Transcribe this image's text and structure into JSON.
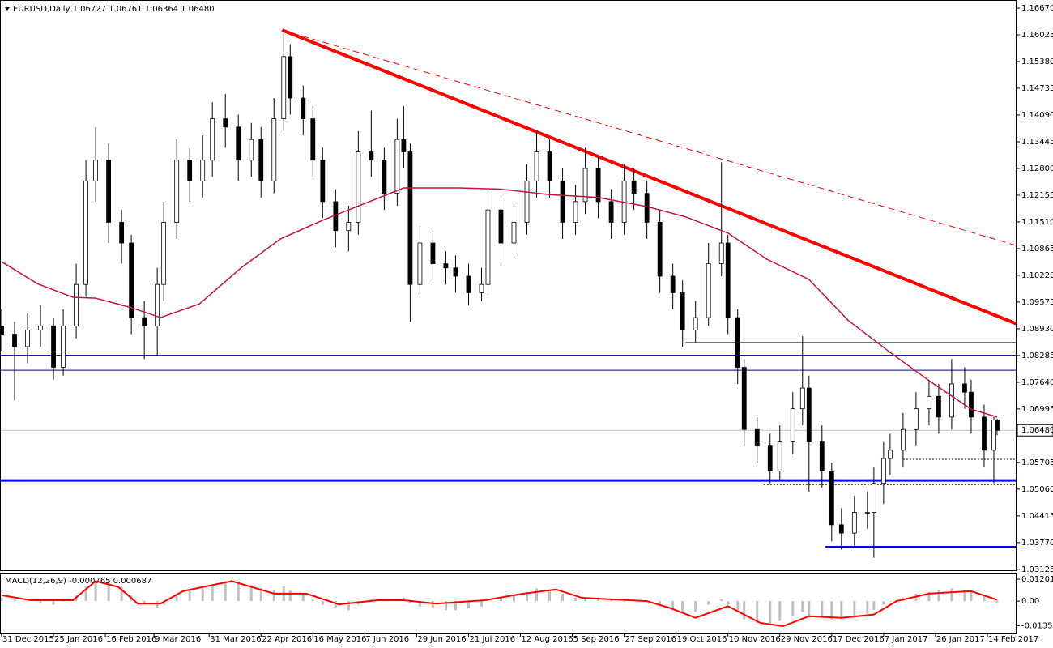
{
  "chart_data": {
    "type": "candlestick",
    "title": "EURUSD,Daily",
    "last_close_label": "1.06480",
    "xlim": [
      -0.5,
      313
    ],
    "ylim": [
      1.03083,
      1.16866
    ],
    "xticks": [
      {
        "value": 0,
        "label": "31 Dec 2015"
      },
      {
        "value": 16,
        "label": "25 Jan 2016"
      },
      {
        "value": 32,
        "label": "16 Feb 2016"
      },
      {
        "value": 47,
        "label": "9 Mar 2016"
      },
      {
        "value": 64,
        "label": "31 Mar 2016"
      },
      {
        "value": 80,
        "label": "22 Apr 2016"
      },
      {
        "value": 96,
        "label": "16 May 2016"
      },
      {
        "value": 112,
        "label": "7 Jun 2016"
      },
      {
        "value": 128,
        "label": "29 Jun 2016"
      },
      {
        "value": 144,
        "label": "21 Jul 2016"
      },
      {
        "value": 160,
        "label": "12 Aug 2016"
      },
      {
        "value": 176,
        "label": "5 Sep 2016"
      },
      {
        "value": 192,
        "label": "27 Sep 2016"
      },
      {
        "value": 208,
        "label": "19 Oct 2016"
      },
      {
        "value": 224,
        "label": "10 Nov 2016"
      },
      {
        "value": 240,
        "label": "29 Nov 2016"
      },
      {
        "value": 256,
        "label": "17 Dec 2016"
      },
      {
        "value": 272,
        "label": "7 Jan 2017"
      },
      {
        "value": 288,
        "label": "26 Jan 2017"
      },
      {
        "value": 304,
        "label": "14 Feb 2017"
      }
    ],
    "yticks": [
      {
        "value": 1.1667,
        "label": "1.16670"
      },
      1.16025,
      {
        "value": 1.1538,
        "label": "1.15380"
      },
      1.14735,
      {
        "value": 1.1409,
        "label": "1.14090"
      },
      1.13445,
      {
        "value": 1.128,
        "label": "1.12800"
      },
      1.12155,
      {
        "value": 1.1151,
        "label": "1.11510"
      },
      1.10865,
      {
        "value": 1.1022,
        "label": "1.10220"
      },
      1.09575,
      {
        "value": 1.0893,
        "label": "1.08930"
      },
      1.08285,
      {
        "value": 1.0764,
        "label": "1.07640"
      },
      1.06995,
      1.05705,
      {
        "value": 1.0506,
        "label": "1.05060"
      },
      1.04415,
      {
        "value": 1.0377,
        "label": "1.03770"
      },
      1.03125
    ],
    "candles": {
      "x": [
        0,
        4,
        8,
        12,
        16,
        19,
        23,
        26,
        29,
        33,
        37,
        40,
        44,
        48,
        50,
        54,
        58,
        62,
        65,
        69,
        73,
        77,
        80,
        84,
        87,
        89,
        93,
        96,
        99,
        103,
        107,
        110,
        114,
        118,
        122,
        124,
        126,
        129,
        133,
        137,
        140,
        144,
        148,
        150,
        154,
        158,
        162,
        165,
        169,
        173,
        177,
        180,
        184,
        188,
        192,
        195,
        199,
        203,
        207,
        210,
        214,
        218,
        222,
        224,
        227,
        229,
        233,
        237,
        240,
        244,
        247,
        249,
        253,
        256,
        259,
        263,
        267,
        269,
        272,
        274,
        278,
        282,
        286,
        289,
        293,
        297,
        299,
        303,
        306,
        307
      ],
      "open": [
        1.09,
        1.088,
        1.085,
        1.089,
        1.09,
        1.08,
        1.09,
        1.1,
        1.125,
        1.13,
        1.115,
        1.11,
        1.092,
        1.09,
        1.1,
        1.115,
        1.13,
        1.125,
        1.13,
        1.14,
        1.138,
        1.13,
        1.135,
        1.125,
        1.14,
        1.155,
        1.145,
        1.14,
        1.13,
        1.12,
        1.113,
        1.115,
        1.132,
        1.13,
        1.122,
        1.135,
        1.132,
        1.1,
        1.11,
        1.105,
        1.104,
        1.102,
        1.098,
        1.1,
        1.118,
        1.11,
        1.115,
        1.125,
        1.132,
        1.125,
        1.115,
        1.12,
        1.128,
        1.12,
        1.115,
        1.125,
        1.122,
        1.115,
        1.102,
        1.098,
        1.089,
        1.092,
        1.105,
        1.11,
        1.092,
        1.08,
        1.065,
        1.061,
        1.055,
        1.062,
        1.07,
        1.075,
        1.062,
        1.055,
        1.042,
        1.04,
        1.045,
        1.045,
        1.052,
        1.058,
        1.06,
        1.065,
        1.07,
        1.073,
        1.068,
        1.076,
        1.074,
        1.068,
        1.06,
        1.06727
      ],
      "high": [
        1.094,
        1.091,
        1.093,
        1.095,
        1.092,
        1.094,
        1.105,
        1.13,
        1.138,
        1.134,
        1.118,
        1.112,
        1.096,
        1.104,
        1.12,
        1.135,
        1.133,
        1.136,
        1.144,
        1.146,
        1.141,
        1.139,
        1.138,
        1.145,
        1.1614,
        1.158,
        1.148,
        1.143,
        1.133,
        1.123,
        1.119,
        1.137,
        1.142,
        1.133,
        1.14,
        1.143,
        1.134,
        1.114,
        1.113,
        1.108,
        1.107,
        1.105,
        1.104,
        1.122,
        1.121,
        1.119,
        1.129,
        1.137,
        1.135,
        1.128,
        1.124,
        1.133,
        1.131,
        1.123,
        1.129,
        1.128,
        1.125,
        1.118,
        1.105,
        1.101,
        1.096,
        1.11,
        1.1295,
        1.112,
        1.094,
        1.082,
        1.068,
        1.064,
        1.066,
        1.074,
        1.0875,
        1.078,
        1.066,
        1.057,
        1.046,
        1.049,
        1.05,
        1.056,
        1.062,
        1.064,
        1.069,
        1.074,
        1.077,
        1.076,
        1.082,
        1.08,
        1.077,
        1.071,
        1.068,
        1.06761
      ],
      "low": [
        1.084,
        1.072,
        1.081,
        1.085,
        1.077,
        1.078,
        1.087,
        1.097,
        1.12,
        1.11,
        1.105,
        1.088,
        1.082,
        1.083,
        1.096,
        1.111,
        1.12,
        1.121,
        1.126,
        1.133,
        1.125,
        1.126,
        1.121,
        1.122,
        1.137,
        1.141,
        1.136,
        1.126,
        1.116,
        1.109,
        1.108,
        1.112,
        1.126,
        1.118,
        1.119,
        1.128,
        1.091,
        1.097,
        1.101,
        1.1,
        1.098,
        1.095,
        1.096,
        1.098,
        1.106,
        1.107,
        1.112,
        1.121,
        1.121,
        1.111,
        1.112,
        1.117,
        1.116,
        1.111,
        1.112,
        1.118,
        1.111,
        1.098,
        1.094,
        1.085,
        1.086,
        1.09,
        1.102,
        1.088,
        1.076,
        1.061,
        1.057,
        1.052,
        1.053,
        1.059,
        1.066,
        1.05,
        1.051,
        1.038,
        1.036,
        1.037,
        1.041,
        1.034,
        1.047,
        1.054,
        1.056,
        1.061,
        1.066,
        1.064,
        1.065,
        1.07,
        1.064,
        1.056,
        1.052,
        1.06364
      ],
      "close": [
        1.088,
        1.085,
        1.089,
        1.09,
        1.08,
        1.09,
        1.1,
        1.125,
        1.13,
        1.115,
        1.11,
        1.092,
        1.09,
        1.1,
        1.115,
        1.13,
        1.125,
        1.13,
        1.14,
        1.138,
        1.13,
        1.135,
        1.125,
        1.14,
        1.155,
        1.145,
        1.14,
        1.13,
        1.12,
        1.113,
        1.115,
        1.132,
        1.13,
        1.122,
        1.135,
        1.132,
        1.1,
        1.11,
        1.105,
        1.104,
        1.102,
        1.098,
        1.1,
        1.118,
        1.11,
        1.115,
        1.125,
        1.132,
        1.125,
        1.115,
        1.12,
        1.128,
        1.12,
        1.115,
        1.125,
        1.122,
        1.115,
        1.102,
        1.098,
        1.089,
        1.092,
        1.105,
        1.11,
        1.092,
        1.08,
        1.065,
        1.061,
        1.055,
        1.062,
        1.07,
        1.075,
        1.062,
        1.055,
        1.042,
        1.04,
        1.045,
        1.045,
        1.052,
        1.058,
        1.06,
        1.065,
        1.07,
        1.073,
        1.068,
        1.076,
        1.074,
        1.068,
        1.06,
        1.06727,
        1.0648
      ]
    },
    "ma": {
      "color": "#c8143c",
      "x": [
        0,
        11,
        22,
        29,
        40,
        49,
        61,
        74,
        86,
        99,
        116,
        124,
        141,
        154,
        169,
        184,
        199,
        211,
        224,
        236,
        249,
        261,
        274,
        286,
        299,
        307
      ],
      "values": [
        1.1055,
        1.1002,
        1.0969,
        1.0967,
        1.0944,
        1.092,
        1.0953,
        1.1041,
        1.111,
        1.1155,
        1.1208,
        1.1233,
        1.1233,
        1.123,
        1.1217,
        1.121,
        1.1188,
        1.1163,
        1.1124,
        1.1061,
        1.1012,
        1.0914,
        1.0836,
        1.0768,
        1.0699,
        1.068
      ]
    },
    "trendlines": [
      {
        "style": "solid",
        "color": "#ff0000",
        "x": [
          86.5,
          313
        ],
        "y": [
          1.1614,
          1.0905
        ]
      },
      {
        "style": "dashed",
        "color": "#ff0000",
        "x": [
          86.5,
          313
        ],
        "y": [
          1.1614,
          1.1094
        ]
      }
    ],
    "levels": [
      {
        "value": 1.0829,
        "color": "#000080",
        "style": "solid"
      },
      {
        "value": 1.0793,
        "color": "#000080",
        "style": "solid"
      },
      {
        "value": 1.0527,
        "color": "#0000ff",
        "style": "bold"
      },
      {
        "value": 1.0367,
        "from": 254,
        "color": "#0000ff",
        "style": "medium"
      },
      {
        "value": 1.086,
        "from": 211,
        "color": "#2f4f4f",
        "style": "solid"
      },
      {
        "value": 1.0578,
        "from": 278,
        "color": "#000000",
        "style": "dotted"
      },
      {
        "value": 1.0517,
        "from": 235,
        "color": "#000000",
        "style": "dotted"
      }
    ],
    "macd": {
      "label": "MACD(12,26,9) -0.000765 0.000687",
      "ylim": [
        -0.0178,
        0.0152
      ],
      "yticks": [
        0.012013,
        {
          "value": 0,
          "label": "0.00"
        },
        -0.013513
      ],
      "histogram_color": "#c0c0c0",
      "histogram": [
        0.002,
        0.001,
        0.0,
        -0.001,
        -0.002,
        0.0,
        0.003,
        0.008,
        0.011,
        0.012,
        0.008,
        0.003,
        -0.002,
        -0.004,
        -0.002,
        0.003,
        0.006,
        0.007,
        0.009,
        0.011,
        0.01,
        0.009,
        0.007,
        0.006,
        0.008,
        0.006,
        0.004,
        0.001,
        -0.002,
        -0.004,
        -0.005,
        -0.002,
        0.001,
        0.0,
        0.001,
        0.002,
        -0.001,
        -0.003,
        -0.004,
        -0.005,
        -0.005,
        -0.004,
        -0.003,
        0.001,
        0.002,
        0.003,
        0.005,
        0.007,
        0.006,
        0.004,
        0.002,
        0.002,
        0.002,
        0.001,
        0.0,
        0.001,
        0.0,
        -0.002,
        -0.004,
        -0.006,
        -0.006,
        -0.002,
        0.001,
        -0.002,
        -0.006,
        -0.01,
        -0.012,
        -0.013,
        -0.011,
        -0.008,
        -0.006,
        -0.008,
        -0.009,
        -0.01,
        -0.01,
        -0.009,
        -0.007,
        -0.005,
        -0.002,
        0.0,
        0.002,
        0.004,
        0.005,
        0.006,
        0.007,
        0.006,
        0.005,
        0.003,
        0.0,
        -0.000765
      ],
      "signal_color": "#ff0000",
      "signal_x": [
        0,
        9,
        22,
        29,
        36,
        42,
        49,
        56,
        71,
        84,
        94,
        104,
        116,
        124,
        134,
        149,
        161,
        171,
        179,
        189,
        199,
        206,
        214,
        224,
        234,
        241,
        249,
        259,
        269,
        276,
        286,
        299,
        307
      ],
      "signal": [
        0.0032,
        0.0005,
        0.0005,
        0.011,
        0.0078,
        -0.0014,
        -0.0014,
        0.0055,
        0.011,
        0.0041,
        0.0041,
        -0.0018,
        0.0005,
        0.0005,
        -0.0014,
        0.0005,
        0.0041,
        0.0064,
        0.0018,
        0.0009,
        0,
        -0.0037,
        -0.0092,
        -0.0028,
        -0.012,
        -0.0138,
        -0.0083,
        -0.0092,
        -0.0074,
        0,
        0.0041,
        0.0055,
        0.000687
      ]
    }
  }
}
